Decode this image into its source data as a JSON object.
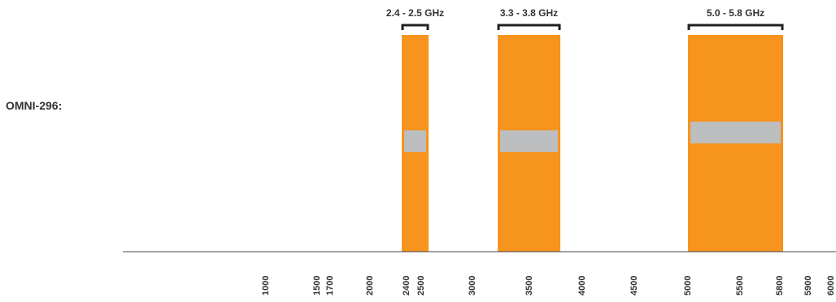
{
  "chart_data": {
    "type": "bar",
    "title": "",
    "row_label": "OMNI-296:",
    "xlabel": "",
    "ylabel": "",
    "x_ticks": [
      "1000",
      "1500",
      "1700",
      "2000",
      "2400",
      "2500",
      "3000",
      "3500",
      "4000",
      "4500",
      "5000",
      "5500",
      "5800",
      "5900",
      "6000"
    ],
    "bands": [
      {
        "name": "2.4 - 2.5 GHz",
        "start": 2400,
        "end": 2500
      },
      {
        "name": "3.3 - 3.8 GHz",
        "start": 3300,
        "end": 3800
      },
      {
        "name": "5.0 - 5.8 GHz",
        "start": 5000,
        "end": 5800
      }
    ],
    "gain_markers": [
      {
        "band": "2.4 - 2.5 GHz",
        "low": 0.46,
        "high": 0.56
      },
      {
        "band": "3.3 - 3.8 GHz",
        "low": 0.46,
        "high": 0.56
      },
      {
        "band": "5.0 - 5.8 GHz",
        "low": 0.5,
        "high": 0.6
      }
    ],
    "colors": {
      "band": "#f7941d",
      "marker": "#bcbec0",
      "axis": "#444444",
      "bracket": "#231f20"
    },
    "grid": false,
    "legend": "none"
  }
}
